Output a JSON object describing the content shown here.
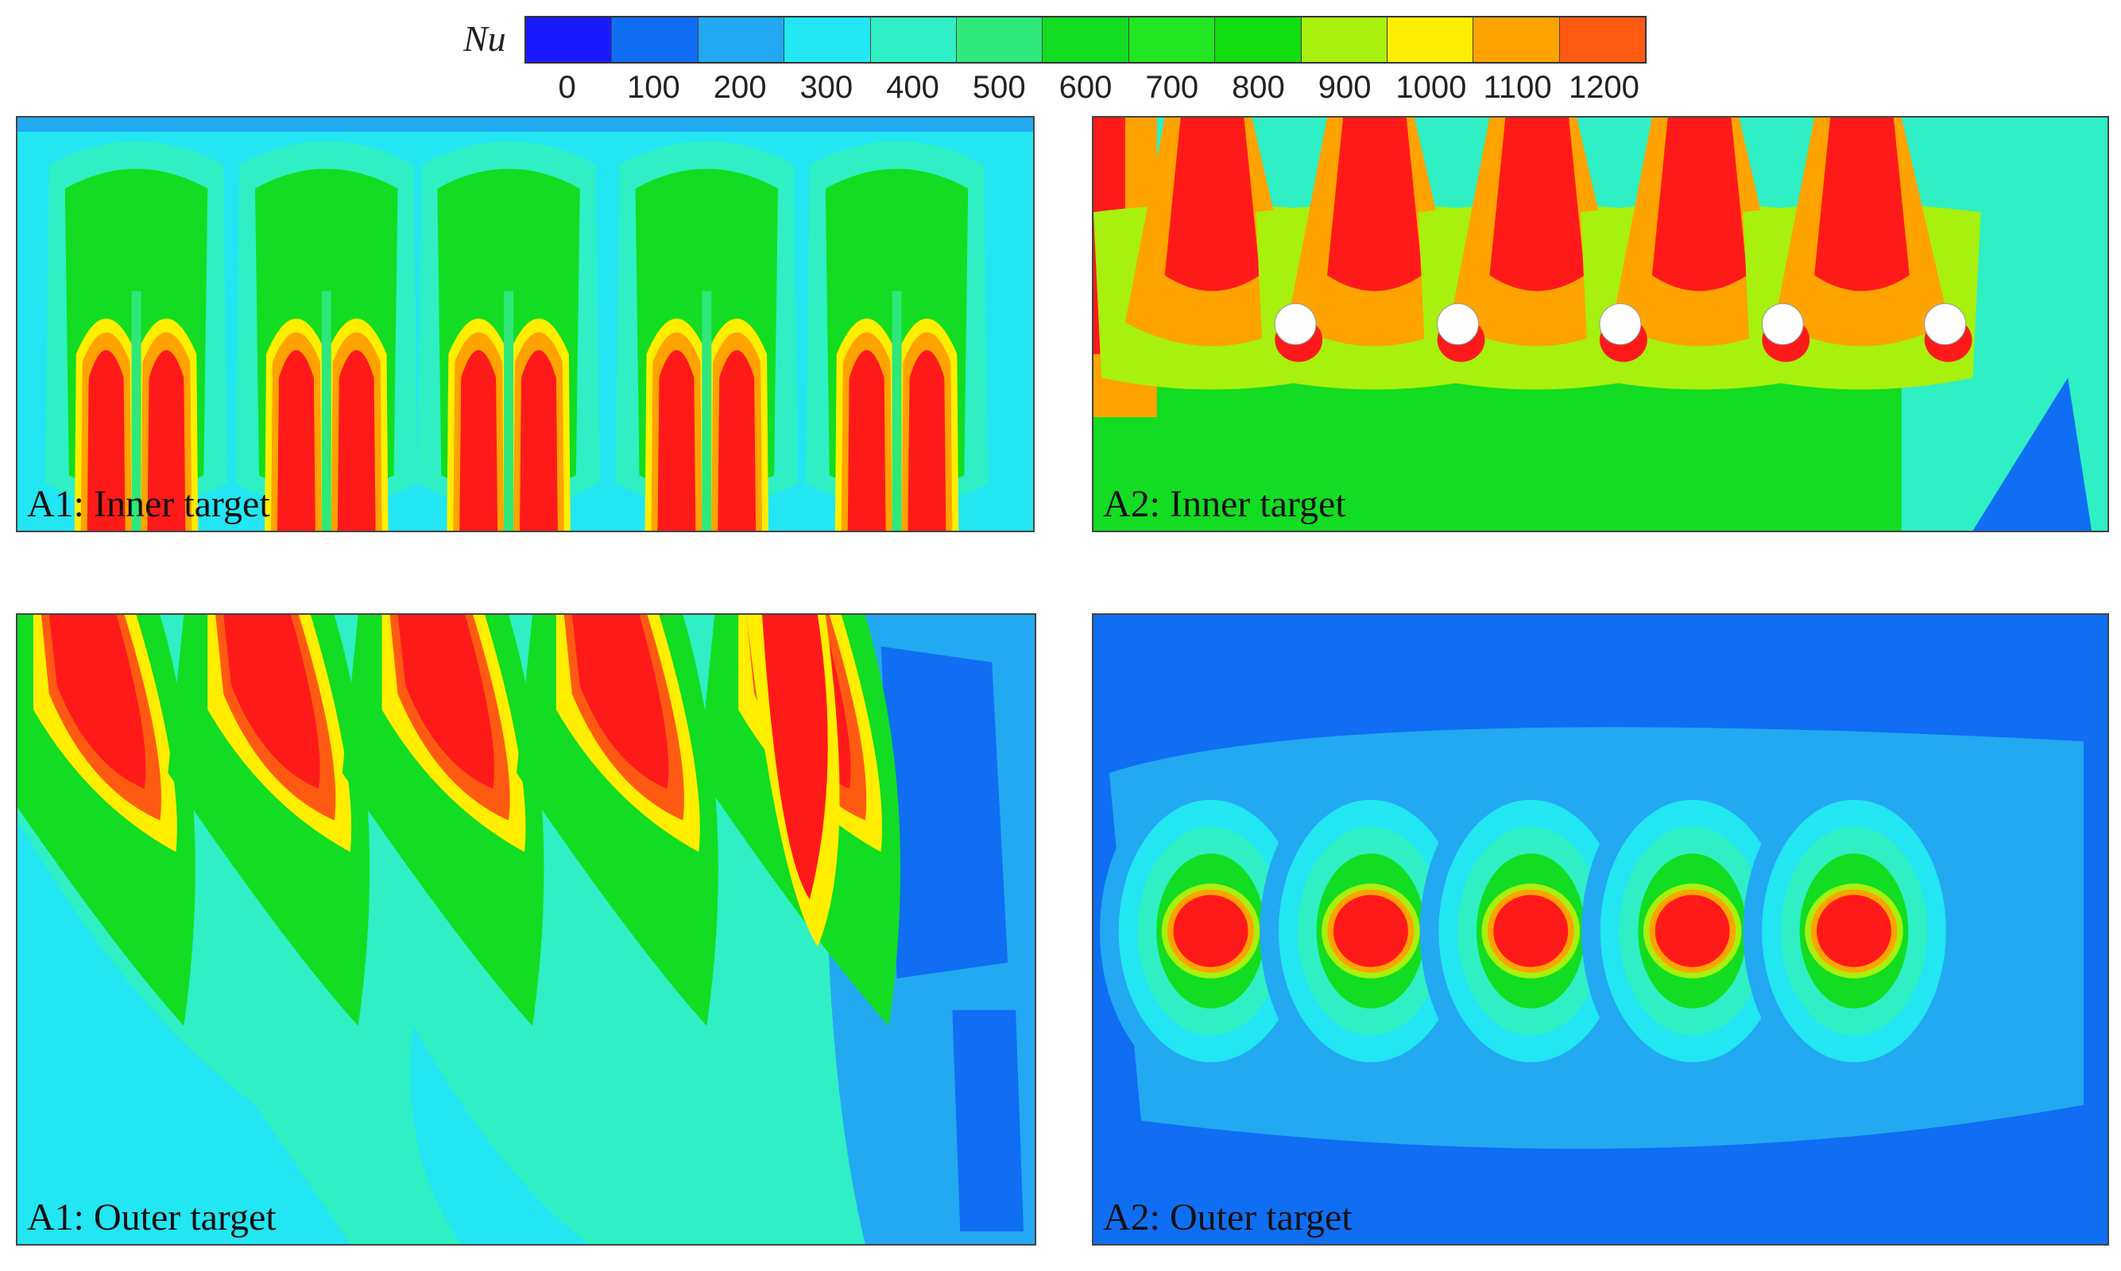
{
  "chart_data": {
    "type": "heatmap",
    "colorbar": {
      "title": "Nu",
      "ticks": [
        "0",
        "100",
        "200",
        "300",
        "400",
        "500",
        "600",
        "700",
        "800",
        "900",
        "1000",
        "1100",
        "1200"
      ],
      "range": [
        0,
        1200
      ],
      "colors": [
        "#1a1aff",
        "#0f6ef2",
        "#23a8f2",
        "#22e6f2",
        "#2ef0c4",
        "#2ee87a",
        "#12dd22",
        "#22e622",
        "#11dd11",
        "#a8f00e",
        "#ffee00",
        "#ffa300",
        "#ff5a12",
        "#ff1a1a"
      ]
    },
    "panels": [
      {
        "label": "A1: Inner target",
        "jets": 5,
        "pattern": "inner-impingement"
      },
      {
        "label": "A2: Inner target",
        "jets": 5,
        "pattern": "inner-with-holes"
      },
      {
        "label": "A1: Outer target",
        "jets": 5,
        "pattern": "outer-streaks"
      },
      {
        "label": "A2: Outer target",
        "jets": 5,
        "pattern": "outer-spots"
      }
    ]
  }
}
